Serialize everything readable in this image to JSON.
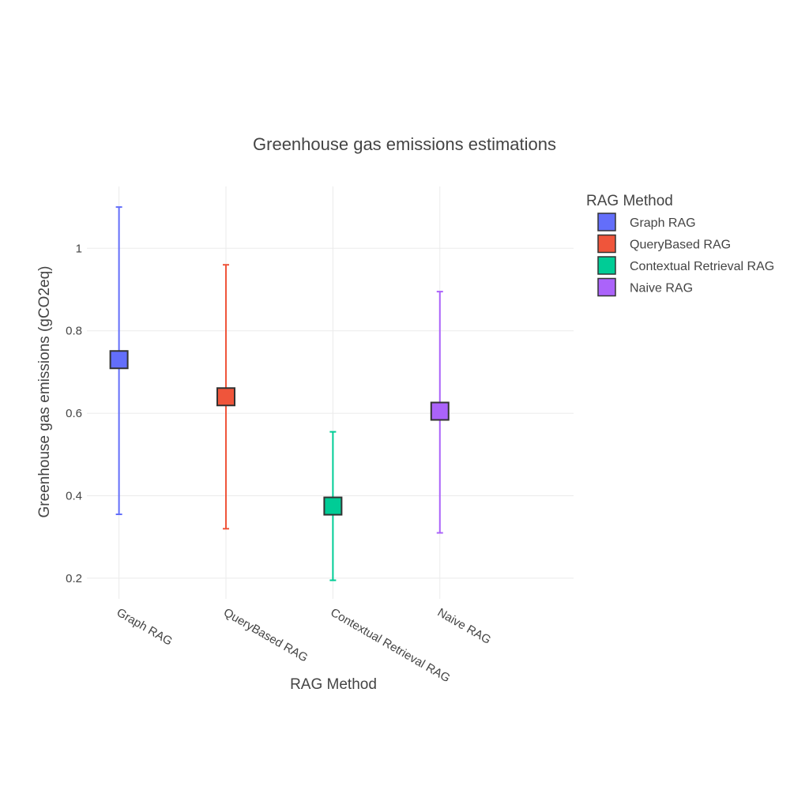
{
  "chart_data": {
    "type": "scatter",
    "title": "Greenhouse gas emissions estimations",
    "xlabel": "RAG Method",
    "ylabel": "Greenhouse gas emissions (gCO2eq)",
    "categories": [
      "Graph RAG",
      "QueryBased RAG",
      "Contextual Retrieval RAG",
      "Naive RAG"
    ],
    "yticks": [
      "0.2",
      "0.4",
      "0.6",
      "0.8",
      "1"
    ],
    "ytick_values": [
      0.2,
      0.4,
      0.6,
      0.8,
      1.0
    ],
    "ylim": [
      0.15,
      1.15
    ],
    "grid": true,
    "legend": {
      "title": "RAG Method",
      "position": "right"
    },
    "series": [
      {
        "name": "Graph RAG",
        "value": 0.73,
        "low": 0.355,
        "high": 1.1,
        "color": "#636efa"
      },
      {
        "name": "QueryBased RAG",
        "value": 0.64,
        "low": 0.32,
        "high": 0.96,
        "color": "#ef553b"
      },
      {
        "name": "Contextual Retrieval RAG",
        "value": 0.375,
        "low": 0.195,
        "high": 0.555,
        "color": "#00cc96"
      },
      {
        "name": "Naive RAG",
        "value": 0.605,
        "low": 0.31,
        "high": 0.895,
        "color": "#ab63fa"
      }
    ]
  }
}
